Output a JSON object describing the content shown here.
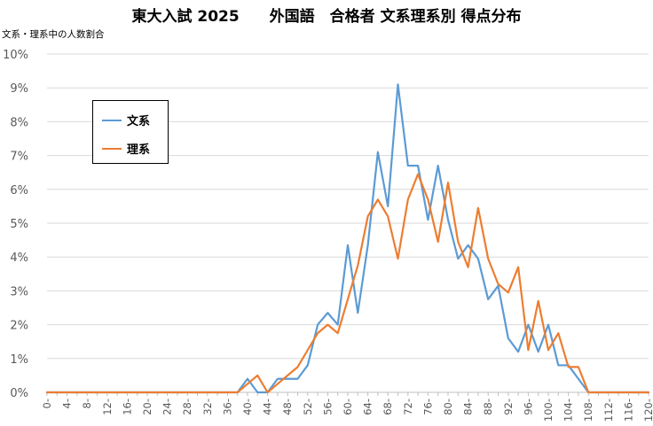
{
  "chart_data": {
    "type": "line",
    "title": "東大入試 2025　　外国語　合格者 文系理系別 得点分布",
    "ylabel": "文系・理系中の人数割合",
    "xlabel": "",
    "xlim": [
      0,
      120
    ],
    "ylim": [
      0,
      10
    ],
    "x": [
      0,
      2,
      4,
      6,
      8,
      10,
      12,
      14,
      16,
      18,
      20,
      22,
      24,
      26,
      28,
      30,
      32,
      34,
      36,
      38,
      40,
      42,
      44,
      46,
      48,
      50,
      52,
      54,
      56,
      58,
      60,
      62,
      64,
      66,
      68,
      70,
      72,
      74,
      76,
      78,
      80,
      82,
      84,
      86,
      88,
      90,
      92,
      94,
      96,
      98,
      100,
      102,
      104,
      106,
      108,
      110,
      112,
      114,
      116,
      118,
      120
    ],
    "x_tick_labels": [
      "0",
      "4",
      "8",
      "12",
      "16",
      "20",
      "24",
      "28",
      "32",
      "36",
      "40",
      "44",
      "48",
      "52",
      "56",
      "60",
      "64",
      "68",
      "72",
      "76",
      "80",
      "84",
      "88",
      "92",
      "96",
      "100",
      "104",
      "108",
      "112",
      "116",
      "120"
    ],
    "y_tick_labels": [
      "0%",
      "1%",
      "2%",
      "3%",
      "4%",
      "5%",
      "6%",
      "7%",
      "8%",
      "9%",
      "10%"
    ],
    "grid": true,
    "legend_position": "upper-left",
    "series": [
      {
        "name": "文系",
        "color": "#5b9bd5",
        "values": [
          0,
          0,
          0,
          0,
          0,
          0,
          0,
          0,
          0,
          0,
          0,
          0,
          0,
          0,
          0,
          0,
          0,
          0,
          0,
          0,
          0.4,
          0,
          0,
          0.4,
          0.4,
          0.4,
          0.8,
          2.0,
          2.35,
          2.0,
          4.35,
          2.35,
          4.35,
          7.1,
          5.5,
          9.1,
          6.7,
          6.7,
          5.1,
          6.7,
          5.1,
          3.95,
          4.35,
          3.95,
          2.75,
          3.15,
          1.6,
          1.2,
          2.0,
          1.2,
          2.0,
          0.8,
          0.8,
          0.4,
          0,
          0,
          0,
          0,
          0,
          0,
          0
        ]
      },
      {
        "name": "理系",
        "color": "#ed7d31",
        "values": [
          0,
          0,
          0,
          0,
          0,
          0,
          0,
          0,
          0,
          0,
          0,
          0,
          0,
          0,
          0,
          0,
          0,
          0,
          0,
          0,
          0.25,
          0.5,
          0,
          0.25,
          0.5,
          0.75,
          1.25,
          1.75,
          2.0,
          1.75,
          2.75,
          3.75,
          5.2,
          5.7,
          5.2,
          3.95,
          5.7,
          6.45,
          5.7,
          4.45,
          6.2,
          4.45,
          3.7,
          5.45,
          3.95,
          3.2,
          2.95,
          3.7,
          1.25,
          2.7,
          1.25,
          1.75,
          0.75,
          0.75,
          0,
          0,
          0,
          0,
          0,
          0,
          0
        ]
      }
    ]
  }
}
